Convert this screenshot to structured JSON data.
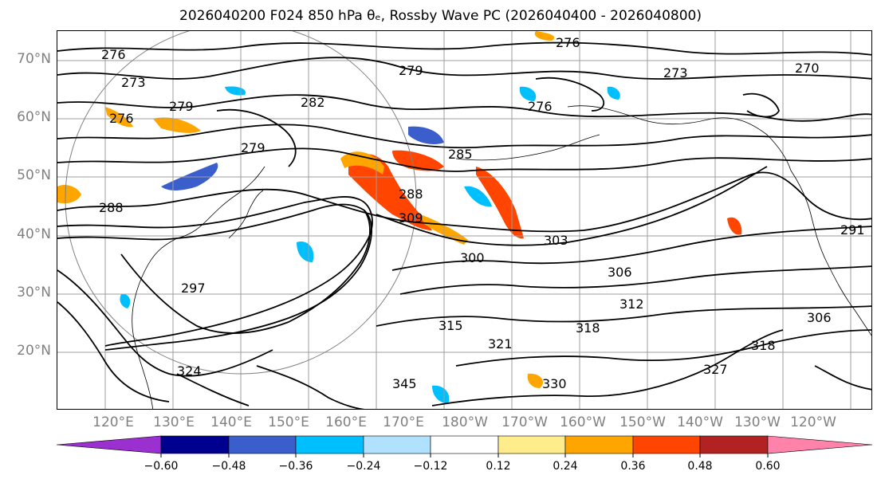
{
  "title": "2026040200 F024 850 hPa θₑ, Rossby Wave PC (2026040400 - 2026040800)",
  "lat_labels": [
    "70°N",
    "60°N",
    "50°N",
    "40°N",
    "30°N",
    "20°N"
  ],
  "lon_labels": [
    "120°E",
    "130°E",
    "140°E",
    "150°E",
    "160°E",
    "170°E",
    "180°W",
    "170°W",
    "160°W",
    "150°W",
    "140°W",
    "130°W",
    "120°W"
  ],
  "contour_labels": [
    "276",
    "273",
    "279",
    "282",
    "285",
    "288",
    "270",
    "291",
    "297",
    "300",
    "303",
    "306",
    "309",
    "312",
    "315",
    "318",
    "321",
    "324",
    "330",
    "345",
    "276",
    "279",
    "276",
    "288",
    "306",
    "318",
    "327"
  ],
  "colorbar": {
    "ticks": [
      "−0.60",
      "−0.48",
      "−0.36",
      "−0.24",
      "−0.12",
      "0.12",
      "0.24",
      "0.36",
      "0.48",
      "0.60"
    ],
    "colors": [
      "#9b30d0",
      "#000090",
      "#3a5fcd",
      "#00bfff",
      "#b0e2ff",
      "#ffffff",
      "#ffec8b",
      "#ffa500",
      "#ff4500",
      "#b22222",
      "#ff82ab"
    ]
  },
  "colors": {
    "contour": "#000000",
    "grid": "#9e9e9e",
    "coast": "#000000",
    "axis_text": "#808080"
  }
}
